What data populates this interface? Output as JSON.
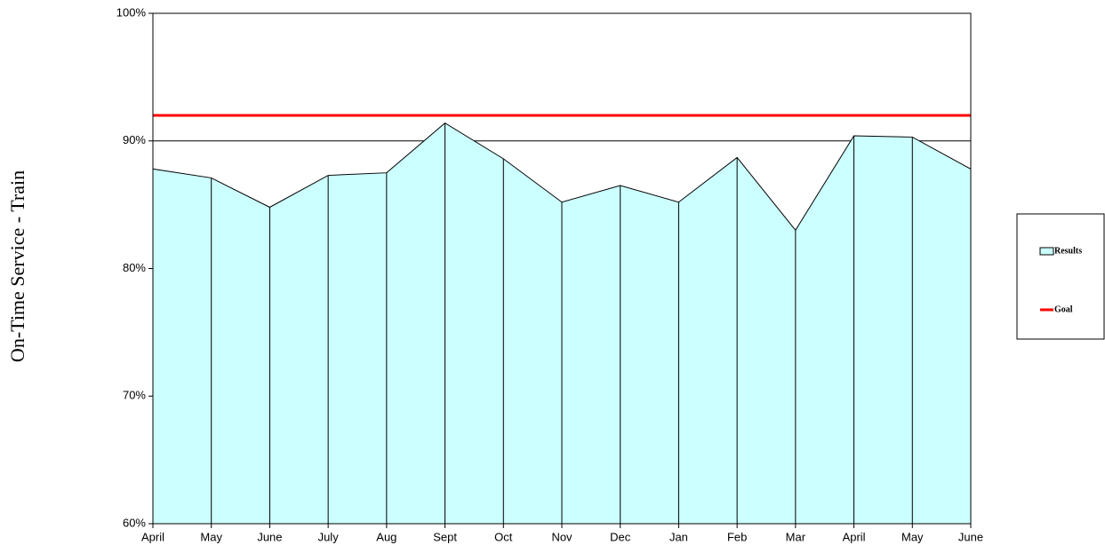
{
  "chart_data": {
    "type": "area",
    "ylabel": "On-Time Service - Train",
    "categories": [
      "April",
      "May",
      "June",
      "July",
      "Aug",
      "Sept",
      "Oct",
      "Nov",
      "Dec",
      "Jan",
      "Feb",
      "Mar",
      "April",
      "May",
      "June"
    ],
    "series": [
      {
        "name": "Results",
        "color": "#ccffff",
        "type": "area",
        "values": [
          87.8,
          87.1,
          84.8,
          87.3,
          87.5,
          91.4,
          88.6,
          85.2,
          86.5,
          85.2,
          88.7,
          83.0,
          90.4,
          90.3,
          87.8
        ]
      },
      {
        "name": "Goal",
        "color": "#ff0000",
        "type": "line",
        "values": [
          92,
          92,
          92,
          92,
          92,
          92,
          92,
          92,
          92,
          92,
          92,
          92,
          92,
          92,
          92
        ]
      }
    ],
    "ylim": [
      60,
      100
    ],
    "yticks": [
      {
        "value": 60,
        "label": "60%"
      },
      {
        "value": 70,
        "label": "70%"
      },
      {
        "value": 80,
        "label": "80%"
      },
      {
        "value": 90,
        "label": "90%"
      },
      {
        "value": 100,
        "label": "100%"
      }
    ],
    "grid": true,
    "legend": "right"
  }
}
